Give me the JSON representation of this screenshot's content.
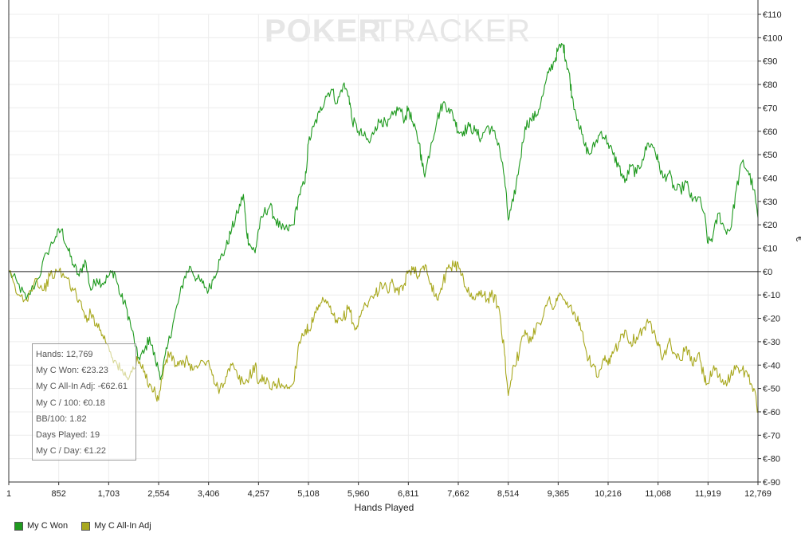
{
  "watermark": {
    "left": "POKER",
    "right": "TRACKER"
  },
  "chart_data": {
    "type": "line",
    "xlabel": "Hands Played",
    "ylabel": "€",
    "xlim": [
      1,
      12769
    ],
    "ylim": [
      -90,
      110
    ],
    "x_ticks": [
      "1",
      "852",
      "1,703",
      "2,554",
      "3,406",
      "4,257",
      "5,108",
      "5,960",
      "6,811",
      "7,662",
      "8,514",
      "9,365",
      "10,216",
      "11,068",
      "11,919",
      "12,769"
    ],
    "y_ticks": [
      "€110",
      "€100",
      "€90",
      "€80",
      "€70",
      "€60",
      "€50",
      "€40",
      "€30",
      "€20",
      "€10",
      "€0",
      "€-10",
      "€-20",
      "€-30",
      "€-40",
      "€-50",
      "€-60",
      "€-70",
      "€-80",
      "€-90"
    ],
    "series": [
      {
        "name": "My C Won",
        "color": "#1f9a1f",
        "points": [
          [
            1,
            0
          ],
          [
            150,
            -5
          ],
          [
            300,
            -12
          ],
          [
            500,
            -3
          ],
          [
            650,
            8
          ],
          [
            800,
            15
          ],
          [
            900,
            18
          ],
          [
            1000,
            10
          ],
          [
            1100,
            3
          ],
          [
            1200,
            -2
          ],
          [
            1300,
            5
          ],
          [
            1400,
            -8
          ],
          [
            1500,
            -3
          ],
          [
            1600,
            -5
          ],
          [
            1700,
            -2
          ],
          [
            1800,
            0
          ],
          [
            1900,
            -10
          ],
          [
            2000,
            -15
          ],
          [
            2100,
            -25
          ],
          [
            2200,
            -37
          ],
          [
            2300,
            -35
          ],
          [
            2400,
            -28
          ],
          [
            2500,
            -38
          ],
          [
            2600,
            -45
          ],
          [
            2700,
            -33
          ],
          [
            2800,
            -22
          ],
          [
            2900,
            -12
          ],
          [
            3000,
            -2
          ],
          [
            3100,
            2
          ],
          [
            3200,
            -3
          ],
          [
            3300,
            -5
          ],
          [
            3406,
            -8
          ],
          [
            3500,
            -2
          ],
          [
            3600,
            5
          ],
          [
            3700,
            10
          ],
          [
            3800,
            18
          ],
          [
            3900,
            25
          ],
          [
            4000,
            33
          ],
          [
            4050,
            18
          ],
          [
            4100,
            12
          ],
          [
            4200,
            8
          ],
          [
            4257,
            18
          ],
          [
            4350,
            25
          ],
          [
            4450,
            28
          ],
          [
            4550,
            22
          ],
          [
            4650,
            18
          ],
          [
            4750,
            18
          ],
          [
            4850,
            20
          ],
          [
            4950,
            33
          ],
          [
            5050,
            38
          ],
          [
            5108,
            55
          ],
          [
            5200,
            62
          ],
          [
            5300,
            68
          ],
          [
            5400,
            75
          ],
          [
            5500,
            78
          ],
          [
            5600,
            72
          ],
          [
            5700,
            80
          ],
          [
            5800,
            75
          ],
          [
            5850,
            65
          ],
          [
            5960,
            60
          ],
          [
            6050,
            58
          ],
          [
            6150,
            55
          ],
          [
            6250,
            62
          ],
          [
            6350,
            65
          ],
          [
            6450,
            62
          ],
          [
            6550,
            67
          ],
          [
            6650,
            70
          ],
          [
            6750,
            65
          ],
          [
            6811,
            70
          ],
          [
            6900,
            62
          ],
          [
            7000,
            55
          ],
          [
            7050,
            45
          ],
          [
            7100,
            42
          ],
          [
            7200,
            55
          ],
          [
            7300,
            65
          ],
          [
            7400,
            72
          ],
          [
            7500,
            70
          ],
          [
            7600,
            65
          ],
          [
            7662,
            60
          ],
          [
            7750,
            60
          ],
          [
            7850,
            62
          ],
          [
            7950,
            60
          ],
          [
            8050,
            57
          ],
          [
            8150,
            62
          ],
          [
            8250,
            60
          ],
          [
            8350,
            55
          ],
          [
            8450,
            40
          ],
          [
            8514,
            22
          ],
          [
            8600,
            30
          ],
          [
            8700,
            45
          ],
          [
            8800,
            62
          ],
          [
            8900,
            65
          ],
          [
            9000,
            67
          ],
          [
            9100,
            75
          ],
          [
            9200,
            85
          ],
          [
            9300,
            90
          ],
          [
            9365,
            95
          ],
          [
            9450,
            97
          ],
          [
            9500,
            90
          ],
          [
            9550,
            85
          ],
          [
            9600,
            75
          ],
          [
            9700,
            65
          ],
          [
            9800,
            55
          ],
          [
            9900,
            50
          ],
          [
            10000,
            55
          ],
          [
            10100,
            60
          ],
          [
            10216,
            55
          ],
          [
            10300,
            50
          ],
          [
            10400,
            45
          ],
          [
            10500,
            38
          ],
          [
            10600,
            45
          ],
          [
            10700,
            42
          ],
          [
            10800,
            48
          ],
          [
            10900,
            55
          ],
          [
            11000,
            53
          ],
          [
            11068,
            47
          ],
          [
            11150,
            40
          ],
          [
            11250,
            42
          ],
          [
            11350,
            35
          ],
          [
            11450,
            35
          ],
          [
            11550,
            38
          ],
          [
            11650,
            30
          ],
          [
            11750,
            32
          ],
          [
            11850,
            25
          ],
          [
            11919,
            12
          ],
          [
            12000,
            15
          ],
          [
            12100,
            25
          ],
          [
            12200,
            18
          ],
          [
            12300,
            18
          ],
          [
            12400,
            35
          ],
          [
            12500,
            47
          ],
          [
            12600,
            43
          ],
          [
            12700,
            35
          ],
          [
            12769,
            23
          ]
        ]
      },
      {
        "name": "My C All-In Adj",
        "color": "#a8a81e",
        "points": [
          [
            1,
            0
          ],
          [
            150,
            -10
          ],
          [
            300,
            -12
          ],
          [
            450,
            -3
          ],
          [
            600,
            -8
          ],
          [
            700,
            -2
          ],
          [
            852,
            0
          ],
          [
            1000,
            -3
          ],
          [
            1100,
            -8
          ],
          [
            1200,
            -12
          ],
          [
            1300,
            -20
          ],
          [
            1400,
            -18
          ],
          [
            1500,
            -22
          ],
          [
            1600,
            -27
          ],
          [
            1703,
            -32
          ],
          [
            1800,
            -38
          ],
          [
            1900,
            -42
          ],
          [
            2000,
            -45
          ],
          [
            2100,
            -43
          ],
          [
            2200,
            -38
          ],
          [
            2300,
            -43
          ],
          [
            2400,
            -48
          ],
          [
            2500,
            -52
          ],
          [
            2554,
            -55
          ],
          [
            2650,
            -40
          ],
          [
            2750,
            -35
          ],
          [
            2850,
            -40
          ],
          [
            2950,
            -40
          ],
          [
            3050,
            -38
          ],
          [
            3150,
            -42
          ],
          [
            3250,
            -40
          ],
          [
            3406,
            -38
          ],
          [
            3500,
            -48
          ],
          [
            3600,
            -50
          ],
          [
            3700,
            -45
          ],
          [
            3800,
            -40
          ],
          [
            3900,
            -45
          ],
          [
            4000,
            -48
          ],
          [
            4100,
            -45
          ],
          [
            4200,
            -40
          ],
          [
            4257,
            -48
          ],
          [
            4350,
            -45
          ],
          [
            4450,
            -50
          ],
          [
            4550,
            -48
          ],
          [
            4650,
            -48
          ],
          [
            4750,
            -50
          ],
          [
            4850,
            -48
          ],
          [
            4950,
            -30
          ],
          [
            5050,
            -25
          ],
          [
            5108,
            -25
          ],
          [
            5200,
            -20
          ],
          [
            5300,
            -15
          ],
          [
            5400,
            -12
          ],
          [
            5500,
            -18
          ],
          [
            5600,
            -22
          ],
          [
            5700,
            -20
          ],
          [
            5800,
            -15
          ],
          [
            5900,
            -25
          ],
          [
            5960,
            -22
          ],
          [
            6050,
            -15
          ],
          [
            6150,
            -12
          ],
          [
            6250,
            -10
          ],
          [
            6350,
            -5
          ],
          [
            6450,
            -8
          ],
          [
            6550,
            -5
          ],
          [
            6650,
            -10
          ],
          [
            6750,
            -5
          ],
          [
            6811,
            0
          ],
          [
            6900,
            2
          ],
          [
            7000,
            -2
          ],
          [
            7100,
            3
          ],
          [
            7200,
            -5
          ],
          [
            7300,
            -12
          ],
          [
            7400,
            -5
          ],
          [
            7500,
            3
          ],
          [
            7600,
            2
          ],
          [
            7662,
            3
          ],
          [
            7750,
            -3
          ],
          [
            7850,
            -10
          ],
          [
            7950,
            -12
          ],
          [
            8050,
            -8
          ],
          [
            8150,
            -12
          ],
          [
            8250,
            -10
          ],
          [
            8350,
            -15
          ],
          [
            8450,
            -35
          ],
          [
            8514,
            -53
          ],
          [
            8600,
            -40
          ],
          [
            8700,
            -35
          ],
          [
            8800,
            -25
          ],
          [
            8900,
            -30
          ],
          [
            9000,
            -22
          ],
          [
            9100,
            -20
          ],
          [
            9200,
            -12
          ],
          [
            9300,
            -15
          ],
          [
            9365,
            -10
          ],
          [
            9450,
            -12
          ],
          [
            9550,
            -15
          ],
          [
            9650,
            -18
          ],
          [
            9750,
            -25
          ],
          [
            9850,
            -35
          ],
          [
            9950,
            -40
          ],
          [
            10050,
            -45
          ],
          [
            10150,
            -38
          ],
          [
            10216,
            -40
          ],
          [
            10300,
            -35
          ],
          [
            10400,
            -30
          ],
          [
            10500,
            -25
          ],
          [
            10600,
            -30
          ],
          [
            10700,
            -28
          ],
          [
            10800,
            -25
          ],
          [
            10900,
            -22
          ],
          [
            11000,
            -25
          ],
          [
            11068,
            -30
          ],
          [
            11150,
            -37
          ],
          [
            11250,
            -30
          ],
          [
            11350,
            -35
          ],
          [
            11450,
            -38
          ],
          [
            11550,
            -32
          ],
          [
            11650,
            -40
          ],
          [
            11750,
            -35
          ],
          [
            11850,
            -45
          ],
          [
            11919,
            -48
          ],
          [
            12000,
            -42
          ],
          [
            12100,
            -45
          ],
          [
            12200,
            -48
          ],
          [
            12300,
            -45
          ],
          [
            12400,
            -40
          ],
          [
            12500,
            -42
          ],
          [
            12600,
            -45
          ],
          [
            12700,
            -50
          ],
          [
            12769,
            -60
          ]
        ]
      }
    ],
    "stats": [
      "Hands: 12,769",
      "My C Won: €23.23",
      "My C All-In Adj: -€62.61",
      "My C / 100: €0.18",
      "BB/100: 1.82",
      "Days Played: 19",
      "My C / Day: €1.22"
    ],
    "grid": true,
    "legend_position": "bottom-left"
  }
}
